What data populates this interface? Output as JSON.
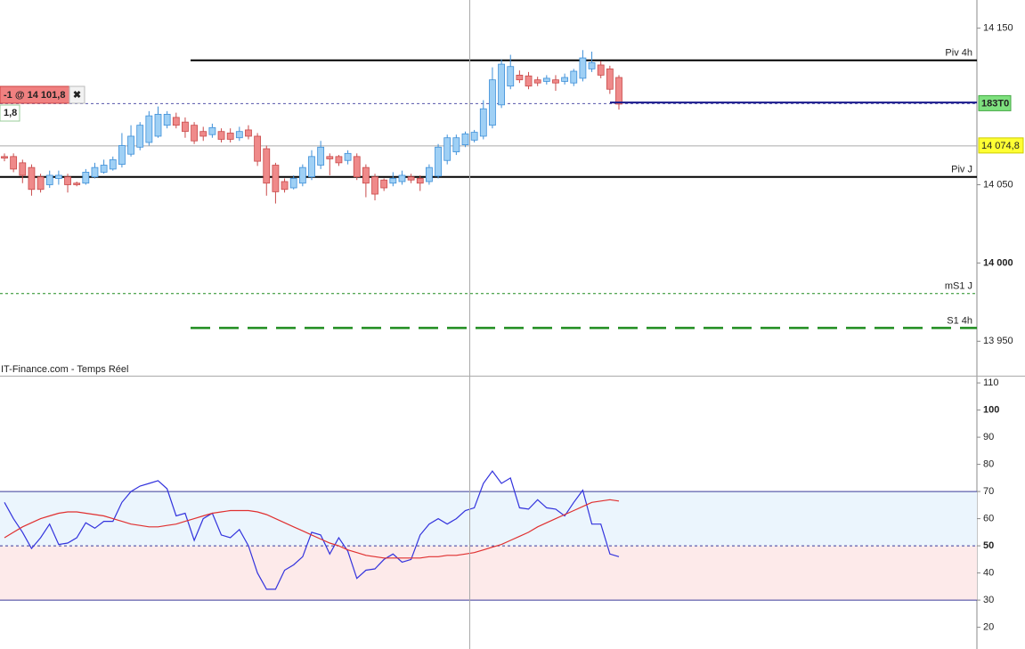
{
  "chart_data": [
    {
      "type": "candlestick",
      "source": "IT-Finance.com - Temps Réel",
      "up_color": "#9fd0f5",
      "up_edge": "#3d8fd8",
      "down_color": "#ef8a8a",
      "down_edge": "#c94a4a",
      "candles": [
        [
          14068,
          14070,
          14065,
          14067
        ],
        [
          14068,
          14070,
          14058,
          14060
        ],
        [
          14064,
          14066,
          14051,
          14056
        ],
        [
          14061,
          14063,
          14043,
          14047
        ],
        [
          14055,
          14057,
          14045,
          14047
        ],
        [
          14050,
          14059,
          14048,
          14056
        ],
        [
          14054,
          14059,
          14050,
          14056
        ],
        [
          14055,
          14057,
          14045,
          14050
        ],
        [
          14051,
          14052,
          14049,
          14050
        ],
        [
          14051,
          14060,
          14050,
          14058
        ],
        [
          14055,
          14064,
          14054,
          14061
        ],
        [
          14058,
          14066,
          14057,
          14062.5
        ],
        [
          14060,
          14068,
          14059,
          14066
        ],
        [
          14063,
          14083,
          14061,
          14075
        ],
        [
          14069.5,
          14088,
          14068,
          14081
        ],
        [
          14074,
          14090,
          14072,
          14088
        ],
        [
          14077,
          14097,
          14075,
          14094
        ],
        [
          14081,
          14100,
          14080,
          14095
        ],
        [
          14088,
          14097,
          14086,
          14095
        ],
        [
          14093,
          14096,
          14086,
          14088
        ],
        [
          14090,
          14093,
          14080,
          14084
        ],
        [
          14088,
          14090,
          14076,
          14078
        ],
        [
          14084,
          14087,
          14078,
          14081
        ],
        [
          14082,
          14089,
          14080,
          14086.5
        ],
        [
          14084,
          14086,
          14077,
          14079
        ],
        [
          14083,
          14086,
          14077,
          14079
        ],
        [
          14080,
          14087,
          14078,
          14084
        ],
        [
          14085,
          14088,
          14079,
          14081
        ],
        [
          14081,
          14083,
          14062,
          14065
        ],
        [
          14073,
          14075,
          14043,
          14051
        ],
        [
          14062.5,
          14064,
          14038,
          14045.5
        ],
        [
          14052,
          14054,
          14045,
          14047
        ],
        [
          14048,
          14056,
          14047,
          14054
        ],
        [
          14051,
          14063,
          14049,
          14061
        ],
        [
          14055,
          14072,
          14053,
          14068
        ],
        [
          14062.5,
          14078,
          14060,
          14074
        ],
        [
          14068,
          14070,
          14056,
          14066.5
        ],
        [
          14068,
          14069,
          14062,
          14064
        ],
        [
          14065.5,
          14072,
          14063,
          14070
        ],
        [
          14068,
          14070,
          14053,
          14055
        ],
        [
          14061,
          14063,
          14042,
          14051
        ],
        [
          14055,
          14057,
          14040,
          14044
        ],
        [
          14053,
          14054,
          14046,
          14048
        ],
        [
          14051,
          14058,
          14049,
          14054
        ],
        [
          14052,
          14059,
          14050,
          14056
        ],
        [
          14055,
          14057,
          14051,
          14053
        ],
        [
          14054,
          14056,
          14046,
          14051
        ],
        [
          14052,
          14063,
          14050,
          14061
        ],
        [
          14055.5,
          14076,
          14054,
          14074
        ],
        [
          14065.5,
          14082,
          14063,
          14080
        ],
        [
          14071,
          14082,
          14069,
          14080
        ],
        [
          14075.5,
          14084,
          14074,
          14082.5
        ],
        [
          14078.5,
          14085,
          14077,
          14083.5
        ],
        [
          14081,
          14104,
          14079,
          14098.5
        ],
        [
          14088,
          14125,
          14086,
          14117
        ],
        [
          14101,
          14130,
          14099,
          14127
        ],
        [
          14113,
          14133,
          14111,
          14125.5
        ],
        [
          14120,
          14123,
          14115,
          14117
        ],
        [
          14119.5,
          14122,
          14111,
          14113
        ],
        [
          14117,
          14119,
          14113,
          14115
        ],
        [
          14116,
          14120,
          14114,
          14118
        ],
        [
          14117,
          14120,
          14110,
          14115
        ],
        [
          14116,
          14121,
          14114,
          14118.5
        ],
        [
          14115,
          14124,
          14113,
          14122.5
        ],
        [
          14118,
          14136,
          14116,
          14131
        ],
        [
          14124,
          14135,
          14122,
          14128
        ],
        [
          14126.5,
          14129,
          14118,
          14120
        ],
        [
          14124,
          14126,
          14108,
          14111
        ],
        [
          14118.5,
          14120,
          14098,
          14101.5
        ]
      ],
      "ylim": [
        13928,
        14168
      ],
      "yticks": [
        {
          "value": 13950,
          "label": "13 950"
        },
        {
          "value": 14000,
          "label": "14 000"
        },
        {
          "value": 14050,
          "label": "14 050"
        },
        {
          "value": 14150,
          "label": "14 150"
        }
      ],
      "levels": [
        {
          "name": "Piv 4h",
          "value": 14129.5,
          "color": "#000000"
        },
        {
          "name": "Piv J",
          "value": 14055,
          "color": "#000000"
        },
        {
          "name": "mS1 J",
          "value": 13980.5,
          "color": "#1e8c1e"
        },
        {
          "name": "S1 4h",
          "value": 13958.5,
          "color": "#1e8c1e"
        }
      ],
      "reference": {
        "value": 14074.8,
        "label": "14 074,8"
      },
      "price_line": 14102.5,
      "timer_label": "183T0",
      "order": {
        "value": 14101.8,
        "label": "-1 @ 14 101,8",
        "pnl_label": "1,8"
      }
    },
    {
      "type": "line",
      "ylim": [
        12,
        112
      ],
      "yticks": [
        20,
        30,
        40,
        50,
        60,
        70,
        80,
        90,
        100,
        110
      ],
      "zones": [
        30,
        50,
        70
      ],
      "series": [
        {
          "color": "#3333dd",
          "values": [
            66,
            60,
            55,
            49,
            53,
            58,
            50.5,
            51,
            53,
            58.5,
            56.5,
            59,
            59,
            66,
            70,
            72,
            73,
            74,
            71,
            61,
            62,
            52,
            60,
            62,
            54,
            53,
            56,
            50,
            40,
            34,
            34,
            41,
            43,
            46,
            55,
            54,
            47,
            53,
            48,
            38,
            41,
            41.5,
            45,
            47,
            44,
            45,
            54,
            58,
            60,
            58,
            60,
            63,
            64,
            73,
            77.5,
            73,
            75,
            64,
            63.5,
            67,
            64,
            63.5,
            61,
            66,
            70.5,
            58,
            58,
            47,
            46
          ]
        },
        {
          "color": "#e03030",
          "values": [
            53,
            55,
            57,
            58.5,
            60,
            61,
            62,
            62.5,
            62.5,
            62,
            61.5,
            61,
            60,
            59,
            58,
            57.5,
            57,
            57,
            57.5,
            58,
            59,
            60,
            61,
            62,
            62.5,
            63,
            63,
            63,
            62.5,
            61.5,
            60,
            58.5,
            57,
            55.5,
            54,
            52.5,
            51,
            50,
            48.5,
            47.5,
            46.5,
            46,
            45.5,
            45.5,
            45.5,
            45.5,
            45.5,
            46,
            46,
            46.5,
            46.5,
            47,
            47.5,
            48.5,
            49.5,
            50.5,
            52,
            53.5,
            55,
            57,
            58.5,
            60,
            61.5,
            63,
            64.5,
            66,
            66.5,
            67,
            66.5
          ]
        }
      ]
    }
  ]
}
